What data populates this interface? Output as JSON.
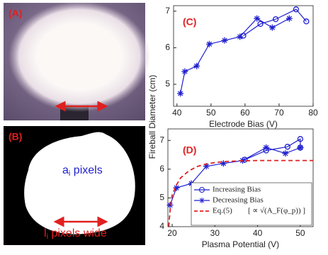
{
  "panels": {
    "a": "(A)",
    "b": "(B)",
    "c": "(C)",
    "d": "(D)"
  },
  "image_b": {
    "area": {
      "text": "a",
      "sub": "i",
      "rest": " pixels"
    },
    "length": {
      "text": "l",
      "sub": "i",
      "rest": " pixels wide"
    }
  },
  "shared_ylabel": "Fireball Diameter (cm)",
  "chart_data": [
    {
      "type": "line",
      "xlabel": "Electrode Bias (V)",
      "xlim": [
        39,
        80
      ],
      "xticks": [
        40,
        50,
        60,
        70,
        80
      ],
      "ylim": [
        4.4,
        7.15
      ],
      "yticks": [
        5,
        6,
        7
      ],
      "series": [
        {
          "name": "Increasing Bias",
          "color": "#1f1fd0",
          "marker": "circle",
          "x": [
            59.5,
            64.5,
            69,
            75,
            78
          ],
          "values": [
            6.33,
            6.65,
            6.78,
            7.05,
            6.72
          ]
        },
        {
          "name": "Decreasing Bias",
          "color": "#1f1fd0",
          "marker": "star",
          "x": [
            41,
            42.3,
            45.8,
            49.5,
            54,
            58.5,
            63.5,
            68,
            73
          ],
          "values": [
            4.75,
            5.35,
            5.5,
            6.1,
            6.2,
            6.3,
            6.8,
            6.55,
            6.8
          ]
        }
      ]
    },
    {
      "type": "line",
      "xlabel": "Plasma Potential (V)",
      "xlim": [
        19,
        53
      ],
      "xticks": [
        20,
        30,
        40,
        50
      ],
      "ylim": [
        4,
        7.4
      ],
      "yticks": [
        4,
        5,
        6,
        7
      ],
      "legend": "lower right",
      "legend_note": "[ ∝ √(A_F(φ_p)) ]",
      "series": [
        {
          "name": "Increasing Bias",
          "color": "#1f1fd0",
          "marker": "circle",
          "x": [
            37,
            42,
            47,
            50,
            50
          ],
          "values": [
            6.33,
            6.65,
            6.78,
            7.05,
            6.75
          ]
        },
        {
          "name": "Decreasing Bias",
          "color": "#1f1fd0",
          "marker": "star",
          "x": [
            19.5,
            21,
            24.5,
            28,
            32,
            36.5,
            42,
            46.5,
            50
          ],
          "values": [
            4.75,
            5.35,
            5.5,
            6.1,
            6.2,
            6.3,
            6.75,
            6.55,
            6.75
          ]
        },
        {
          "name": "Eq.(5)",
          "color": "#e02020",
          "dash": true,
          "x": [
            19.2,
            19.5,
            20,
            21,
            22,
            24,
            26,
            28,
            30,
            33,
            36,
            40,
            45,
            50,
            53
          ],
          "values": [
            4.0,
            4.55,
            5.1,
            5.45,
            5.7,
            5.95,
            6.1,
            6.18,
            6.23,
            6.27,
            6.29,
            6.3,
            6.3,
            6.3,
            6.3
          ]
        }
      ]
    }
  ]
}
